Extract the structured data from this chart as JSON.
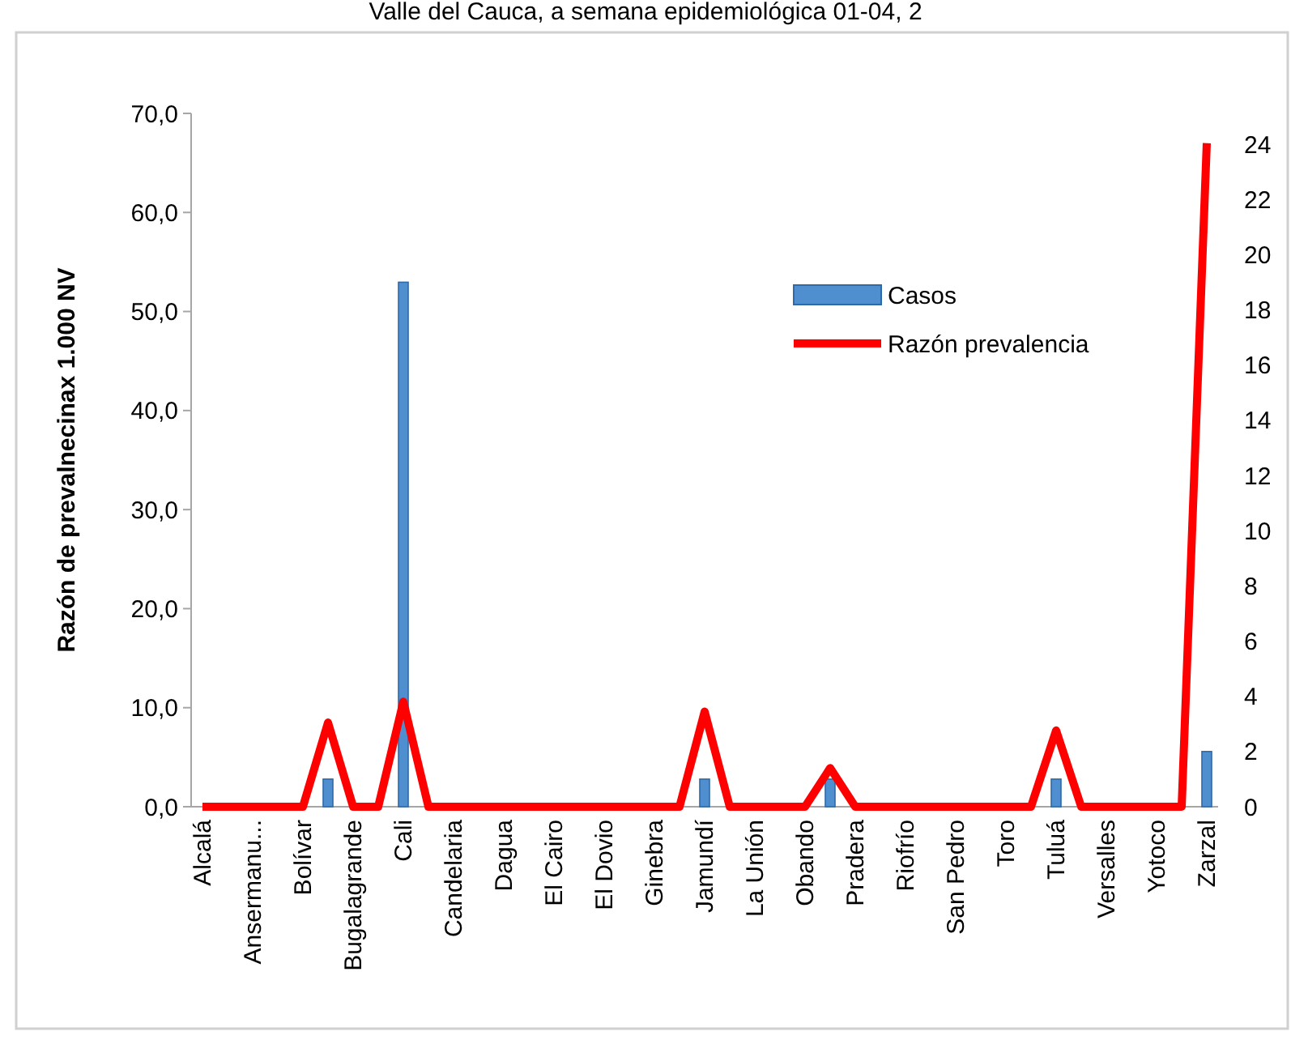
{
  "chart_data": {
    "type": "bar",
    "title": "Valle del Cauca, a semana epidemiológica 01-04, 2",
    "ylabel": "Razón de prevalnecinax 1.000 NV",
    "categories": [
      "Alcalá",
      null,
      "Ansermanu...",
      null,
      "Bolívar",
      null,
      "Bugalagrande",
      null,
      "Cali",
      null,
      "Candelaria",
      null,
      "Dagua",
      null,
      "El Cairo",
      null,
      "El Dovio",
      null,
      "Ginebra",
      null,
      "Jamundí",
      null,
      "La Unión",
      null,
      "Obando",
      null,
      "Pradera",
      null,
      "Riofrío",
      null,
      "San Pedro",
      null,
      "Toro",
      null,
      "Tuluá",
      null,
      "Versalles",
      null,
      "Yotoco",
      null,
      "Zarzal"
    ],
    "series": [
      {
        "name": "Casos",
        "axis": "y2",
        "color": "#4f8fd0",
        "values": [
          0,
          0,
          0,
          0,
          0,
          1,
          0,
          0,
          19,
          0,
          0,
          0,
          0,
          0,
          0,
          0,
          0,
          0,
          0,
          0,
          1,
          0,
          0,
          0,
          0,
          1,
          0,
          0,
          0,
          0,
          0,
          0,
          0,
          0,
          1,
          0,
          0,
          0,
          0,
          0,
          2
        ]
      },
      {
        "name": "Razón prevalencia",
        "type": "line",
        "color": "#ff0000",
        "values": [
          0,
          0,
          0,
          0,
          0,
          8.5,
          0,
          0,
          10.6,
          0,
          0,
          0,
          0,
          0,
          0,
          0,
          0,
          0,
          0,
          0,
          9.6,
          0,
          0,
          0,
          0,
          3.9,
          0,
          0,
          0,
          0,
          0,
          0,
          0,
          0,
          7.7,
          0,
          0,
          0,
          0,
          0,
          67.0
        ]
      }
    ],
    "ylim": [
      0,
      70
    ],
    "yticks": [
      {
        "value": 0,
        "label": "0,0"
      },
      {
        "value": 10,
        "label": "10,0"
      },
      {
        "value": 20,
        "label": "20,0"
      },
      {
        "value": 30,
        "label": "30,0"
      },
      {
        "value": 40,
        "label": "40,0"
      },
      {
        "value": 50,
        "label": "50,0"
      },
      {
        "value": 60,
        "label": "60,0"
      },
      {
        "value": 70,
        "label": "70,0"
      }
    ],
    "y2lim": [
      0,
      24
    ],
    "y2ticks": [
      0,
      2,
      4,
      6,
      8,
      10,
      12,
      14,
      16,
      18,
      20,
      22,
      24
    ],
    "legend": "top right",
    "marker": "none",
    "line_style": "solid",
    "grid": false
  }
}
